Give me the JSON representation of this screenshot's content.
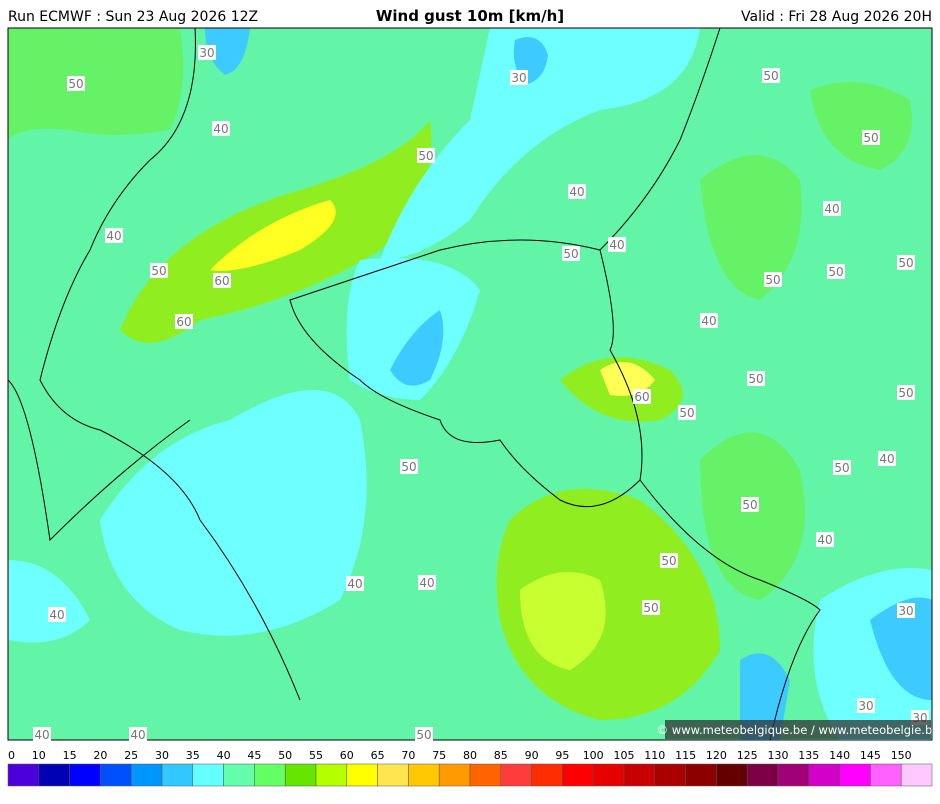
{
  "header": {
    "run": "Run ECMWF : Sun 23 Aug 2026 12Z",
    "title": "Wind gust 10m [km/h]",
    "valid": "Valid : Fri 28 Aug 2026 20H"
  },
  "contour_labels": [
    30,
    50,
    30,
    50,
    40,
    50,
    50,
    40,
    40,
    40,
    40,
    50,
    50,
    60,
    50,
    50,
    50,
    60,
    40,
    50,
    60,
    50,
    50,
    40,
    50,
    50,
    50,
    40,
    50,
    40,
    40,
    50,
    30,
    40,
    30,
    30,
    40,
    40,
    50
  ],
  "credit": "© www.meteobelgique.be / www.meteobelgie.be",
  "legend": {
    "labels": [
      0,
      10,
      15,
      20,
      25,
      30,
      35,
      40,
      45,
      50,
      55,
      60,
      65,
      70,
      75,
      80,
      85,
      90,
      95,
      100,
      105,
      110,
      115,
      120,
      125,
      130,
      135,
      140,
      145,
      150
    ],
    "colors": [
      "#4b00dc",
      "#0000b4",
      "#0000ff",
      "#0050ff",
      "#0096ff",
      "#32c8ff",
      "#64ffff",
      "#64ffaa",
      "#64ff64",
      "#64e600",
      "#b4ff00",
      "#ffff00",
      "#ffe650",
      "#ffc800",
      "#ff9b00",
      "#ff6400",
      "#ff3c3c",
      "#ff2d00",
      "#ff0000",
      "#e60000",
      "#c80000",
      "#aa0000",
      "#8c0000",
      "#640000",
      "#7d0046",
      "#a00078",
      "#d200c8",
      "#ff00ff",
      "#ff60ff",
      "#ffc8ff"
    ]
  }
}
